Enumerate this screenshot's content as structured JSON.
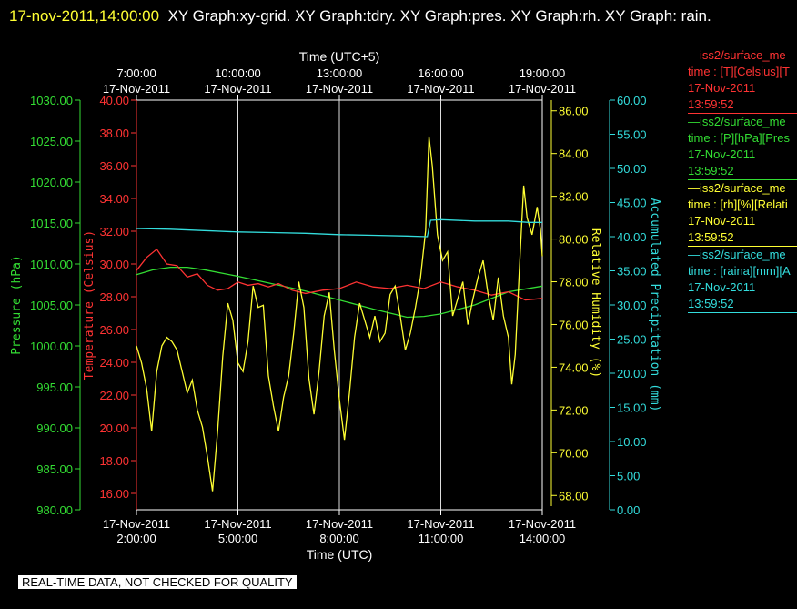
{
  "header": {
    "timestamp": "17-nov-2011,14:00:00",
    "graphs": "XY Graph:xy-grid.  XY Graph:tdry.  XY Graph:pres.  XY Graph:rh.  XY Graph: rain."
  },
  "footer": {
    "note": "REAL-TIME DATA, NOT CHECKED FOR QUALITY"
  },
  "legend": [
    {
      "color": "#ff3333",
      "lines": [
        "—iss2/surface_me",
        "time : [T][Celsius][T",
        "17-Nov-2011",
        "13:59:52"
      ]
    },
    {
      "color": "#33dd33",
      "lines": [
        "—iss2/surface_me",
        "time : [P][hPa][Pres",
        "17-Nov-2011",
        "13:59:52"
      ]
    },
    {
      "color": "#ffff33",
      "lines": [
        "—iss2/surface_me",
        "time : [rh][%][Relati",
        "17-Nov-2011",
        "13:59:52"
      ]
    },
    {
      "color": "#33dddd",
      "lines": [
        "—iss2/surface_me",
        "time : [raina][mm][A",
        "17-Nov-2011",
        "13:59:52"
      ]
    }
  ],
  "chart_data": {
    "type": "line",
    "x_bottom_label": "Time (UTC)",
    "x_top_label": "Time (UTC+5)",
    "x_range": [
      "17-Nov-2011 2:00:00",
      "17-Nov-2011 14:00:00"
    ],
    "bottom_ticks": [
      {
        "date": "17-Nov-2011",
        "time": "2:00:00",
        "hour": 2
      },
      {
        "date": "17-Nov-2011",
        "time": "5:00:00",
        "hour": 5
      },
      {
        "date": "17-Nov-2011",
        "time": "8:00:00",
        "hour": 8
      },
      {
        "date": "17-Nov-2011",
        "time": "11:00:00",
        "hour": 11
      },
      {
        "date": "17-Nov-2011",
        "time": "14:00:00",
        "hour": 14
      }
    ],
    "top_ticks": [
      {
        "date": "17-Nov-2011",
        "time": "7:00:00",
        "hour": 2
      },
      {
        "date": "17-Nov-2011",
        "time": "10:00:00",
        "hour": 5
      },
      {
        "date": "17-Nov-2011",
        "time": "13:00:00",
        "hour": 8
      },
      {
        "date": "17-Nov-2011",
        "time": "16:00:00",
        "hour": 11
      },
      {
        "date": "17-Nov-2011",
        "time": "19:00:00",
        "hour": 14
      }
    ],
    "grid": "vertical",
    "axes": [
      {
        "id": "pres",
        "label": "Pressure (hPa)",
        "color": "#33dd33",
        "ylim": [
          980,
          1030
        ],
        "ticks": [
          "980.00",
          "985.00",
          "990.00",
          "995.00",
          "1000.00",
          "1005.00",
          "1010.00",
          "1015.00",
          "1020.00",
          "1025.00",
          "1030.00"
        ]
      },
      {
        "id": "temp",
        "label": "Temperature (Celsius)",
        "color": "#ff3333",
        "ylim": [
          15,
          40
        ],
        "ticks": [
          "16.00",
          "18.00",
          "20.00",
          "22.00",
          "24.00",
          "26.00",
          "28.00",
          "30.00",
          "32.00",
          "34.00",
          "36.00",
          "38.00",
          "40.00"
        ]
      },
      {
        "id": "rh",
        "label": "Relative Humidity (%)",
        "color": "#ffff33",
        "ylim": [
          67.5,
          86.5
        ],
        "ticks": [
          "68.00",
          "70.00",
          "72.00",
          "74.00",
          "76.00",
          "78.00",
          "80.00",
          "82.00",
          "84.00",
          "86.00"
        ]
      },
      {
        "id": "rain",
        "label": "Accumulated Precipitation (mm)",
        "color": "#33dddd",
        "ylim": [
          0,
          60
        ],
        "ticks": [
          "0.00",
          "5.00",
          "10.00",
          "15.00",
          "20.00",
          "25.00",
          "30.00",
          "35.00",
          "40.00",
          "45.00",
          "50.00",
          "55.00",
          "60.00"
        ]
      }
    ],
    "series": [
      {
        "axis": "pres",
        "color": "#33dd33",
        "points": [
          [
            2,
            1008.7
          ],
          [
            2.5,
            1009.3
          ],
          [
            3,
            1009.6
          ],
          [
            3.5,
            1009.6
          ],
          [
            4,
            1009.3
          ],
          [
            5,
            1008.5
          ],
          [
            6,
            1007.6
          ],
          [
            7,
            1006.7
          ],
          [
            8,
            1005.6
          ],
          [
            9,
            1004.5
          ],
          [
            9.5,
            1004.0
          ],
          [
            10,
            1003.5
          ],
          [
            10.5,
            1003.6
          ],
          [
            11,
            1003.9
          ],
          [
            12,
            1005.0
          ],
          [
            13,
            1006.6
          ],
          [
            14,
            1007.3
          ]
        ]
      },
      {
        "axis": "temp",
        "color": "#ff3333",
        "points": [
          [
            2,
            29.6
          ],
          [
            2.3,
            30.4
          ],
          [
            2.6,
            30.9
          ],
          [
            2.9,
            30.0
          ],
          [
            3.2,
            29.9
          ],
          [
            3.5,
            29.2
          ],
          [
            3.8,
            29.4
          ],
          [
            4.1,
            28.7
          ],
          [
            4.4,
            28.4
          ],
          [
            4.7,
            28.5
          ],
          [
            5.0,
            28.9
          ],
          [
            5.3,
            28.7
          ],
          [
            5.6,
            28.8
          ],
          [
            5.9,
            28.6
          ],
          [
            6.2,
            28.8
          ],
          [
            6.6,
            28.4
          ],
          [
            7.0,
            28.2
          ],
          [
            7.5,
            28.4
          ],
          [
            8.0,
            28.5
          ],
          [
            8.5,
            28.9
          ],
          [
            9.0,
            28.6
          ],
          [
            9.5,
            28.5
          ],
          [
            10.0,
            28.7
          ],
          [
            10.5,
            28.5
          ],
          [
            11.0,
            28.9
          ],
          [
            11.5,
            28.6
          ],
          [
            12.0,
            28.4
          ],
          [
            12.5,
            28.1
          ],
          [
            13.0,
            28.3
          ],
          [
            13.5,
            27.8
          ],
          [
            14,
            27.9
          ]
        ]
      },
      {
        "axis": "rh",
        "color": "#ffff33",
        "points": [
          [
            2,
            75.0
          ],
          [
            2.15,
            74.2
          ],
          [
            2.3,
            73.0
          ],
          [
            2.45,
            71.0
          ],
          [
            2.6,
            73.8
          ],
          [
            2.75,
            75.0
          ],
          [
            2.9,
            75.4
          ],
          [
            3.05,
            75.2
          ],
          [
            3.2,
            74.8
          ],
          [
            3.35,
            73.8
          ],
          [
            3.5,
            72.8
          ],
          [
            3.65,
            73.4
          ],
          [
            3.8,
            72.0
          ],
          [
            3.95,
            71.2
          ],
          [
            4.1,
            69.8
          ],
          [
            4.25,
            68.2
          ],
          [
            4.4,
            71.0
          ],
          [
            4.55,
            74.5
          ],
          [
            4.7,
            77.0
          ],
          [
            4.85,
            76.2
          ],
          [
            5.0,
            74.2
          ],
          [
            5.15,
            73.8
          ],
          [
            5.3,
            75.2
          ],
          [
            5.45,
            77.8
          ],
          [
            5.6,
            76.8
          ],
          [
            5.75,
            76.9
          ],
          [
            5.9,
            73.6
          ],
          [
            6.05,
            72.2
          ],
          [
            6.2,
            71.0
          ],
          [
            6.35,
            72.6
          ],
          [
            6.5,
            73.6
          ],
          [
            6.65,
            75.6
          ],
          [
            6.8,
            78.0
          ],
          [
            6.95,
            76.8
          ],
          [
            7.1,
            73.5
          ],
          [
            7.25,
            71.8
          ],
          [
            7.4,
            73.8
          ],
          [
            7.55,
            76.4
          ],
          [
            7.7,
            77.5
          ],
          [
            7.85,
            74.8
          ],
          [
            8.0,
            72.5
          ],
          [
            8.15,
            70.6
          ],
          [
            8.3,
            72.8
          ],
          [
            8.45,
            75.4
          ],
          [
            8.6,
            77.0
          ],
          [
            8.75,
            76.2
          ],
          [
            8.9,
            75.4
          ],
          [
            9.05,
            76.4
          ],
          [
            9.2,
            75.2
          ],
          [
            9.35,
            75.6
          ],
          [
            9.5,
            77.4
          ],
          [
            9.65,
            77.8
          ],
          [
            9.8,
            76.4
          ],
          [
            9.95,
            74.8
          ],
          [
            10.1,
            75.6
          ],
          [
            10.25,
            76.8
          ],
          [
            10.4,
            78.2
          ],
          [
            10.55,
            80.4
          ],
          [
            10.65,
            84.8
          ],
          [
            10.75,
            83.4
          ],
          [
            10.9,
            80.2
          ],
          [
            11.05,
            79.0
          ],
          [
            11.2,
            79.4
          ],
          [
            11.35,
            76.4
          ],
          [
            11.5,
            77.2
          ],
          [
            11.65,
            78.0
          ],
          [
            11.8,
            76.0
          ],
          [
            11.95,
            77.2
          ],
          [
            12.1,
            78.2
          ],
          [
            12.25,
            79.0
          ],
          [
            12.4,
            77.4
          ],
          [
            12.55,
            76.2
          ],
          [
            12.7,
            78.2
          ],
          [
            12.85,
            76.4
          ],
          [
            13.0,
            75.4
          ],
          [
            13.1,
            73.2
          ],
          [
            13.2,
            74.6
          ],
          [
            13.35,
            79.4
          ],
          [
            13.45,
            82.5
          ],
          [
            13.55,
            81.0
          ],
          [
            13.7,
            80.2
          ],
          [
            13.85,
            81.5
          ],
          [
            13.95,
            80.4
          ],
          [
            14,
            79.2
          ]
        ]
      },
      {
        "axis": "rain",
        "color": "#33dddd",
        "points": [
          [
            2,
            41.2
          ],
          [
            3,
            41.1
          ],
          [
            4,
            40.9
          ],
          [
            5,
            40.7
          ],
          [
            6,
            40.6
          ],
          [
            7,
            40.5
          ],
          [
            8,
            40.3
          ],
          [
            9,
            40.2
          ],
          [
            10,
            40.1
          ],
          [
            10.6,
            40.0
          ],
          [
            10.7,
            42.4
          ],
          [
            11,
            42.5
          ],
          [
            12,
            42.3
          ],
          [
            13,
            42.3
          ],
          [
            13.6,
            42.1
          ],
          [
            14,
            42.1
          ]
        ]
      }
    ]
  }
}
